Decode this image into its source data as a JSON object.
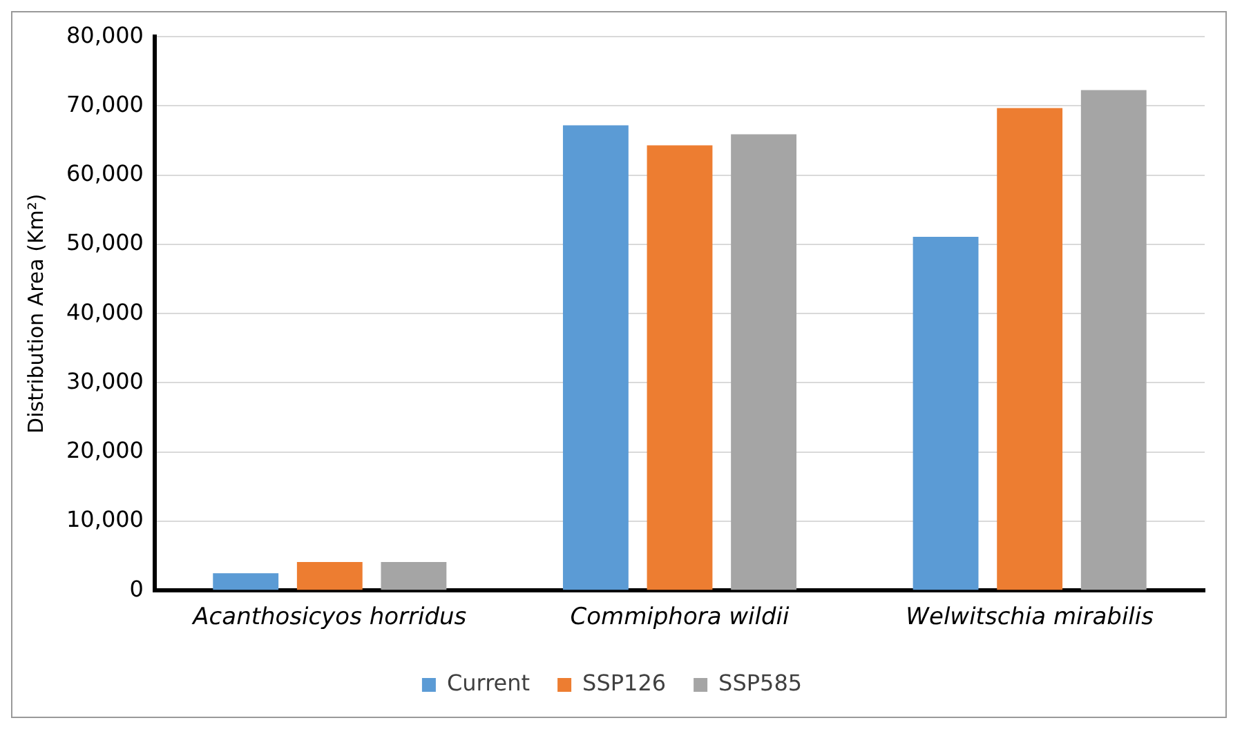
{
  "chart_data": {
    "type": "bar",
    "ylabel": "Distribution Area (Km²)",
    "categories": [
      "Acanthosicyos horridus",
      "Commiphora wildii",
      "Welwitschia mirabilis"
    ],
    "series": [
      {
        "name": "Current",
        "color": "#5b9bd5",
        "values": [
          2500,
          67200,
          51100
        ]
      },
      {
        "name": "SSP126",
        "color": "#ed7d31",
        "values": [
          4100,
          64300,
          69700
        ]
      },
      {
        "name": "SSP585",
        "color": "#a5a5a5",
        "values": [
          4100,
          65900,
          72300
        ]
      }
    ],
    "ylim": [
      0,
      80000
    ],
    "yticks": [
      0,
      {
        "value": 10000,
        "label": "10,000"
      },
      {
        "value": 20000,
        "label": "20,000"
      },
      {
        "value": 30000,
        "label": "30,000"
      },
      {
        "value": 40000,
        "label": "40,000"
      },
      {
        "value": 50000,
        "label": "50,000"
      },
      {
        "value": 60000,
        "label": "60,000"
      },
      {
        "value": 70000,
        "label": "70,000"
      },
      {
        "value": 80000,
        "label": "80,000"
      }
    ],
    "grid": "y",
    "legend": "bottom"
  }
}
